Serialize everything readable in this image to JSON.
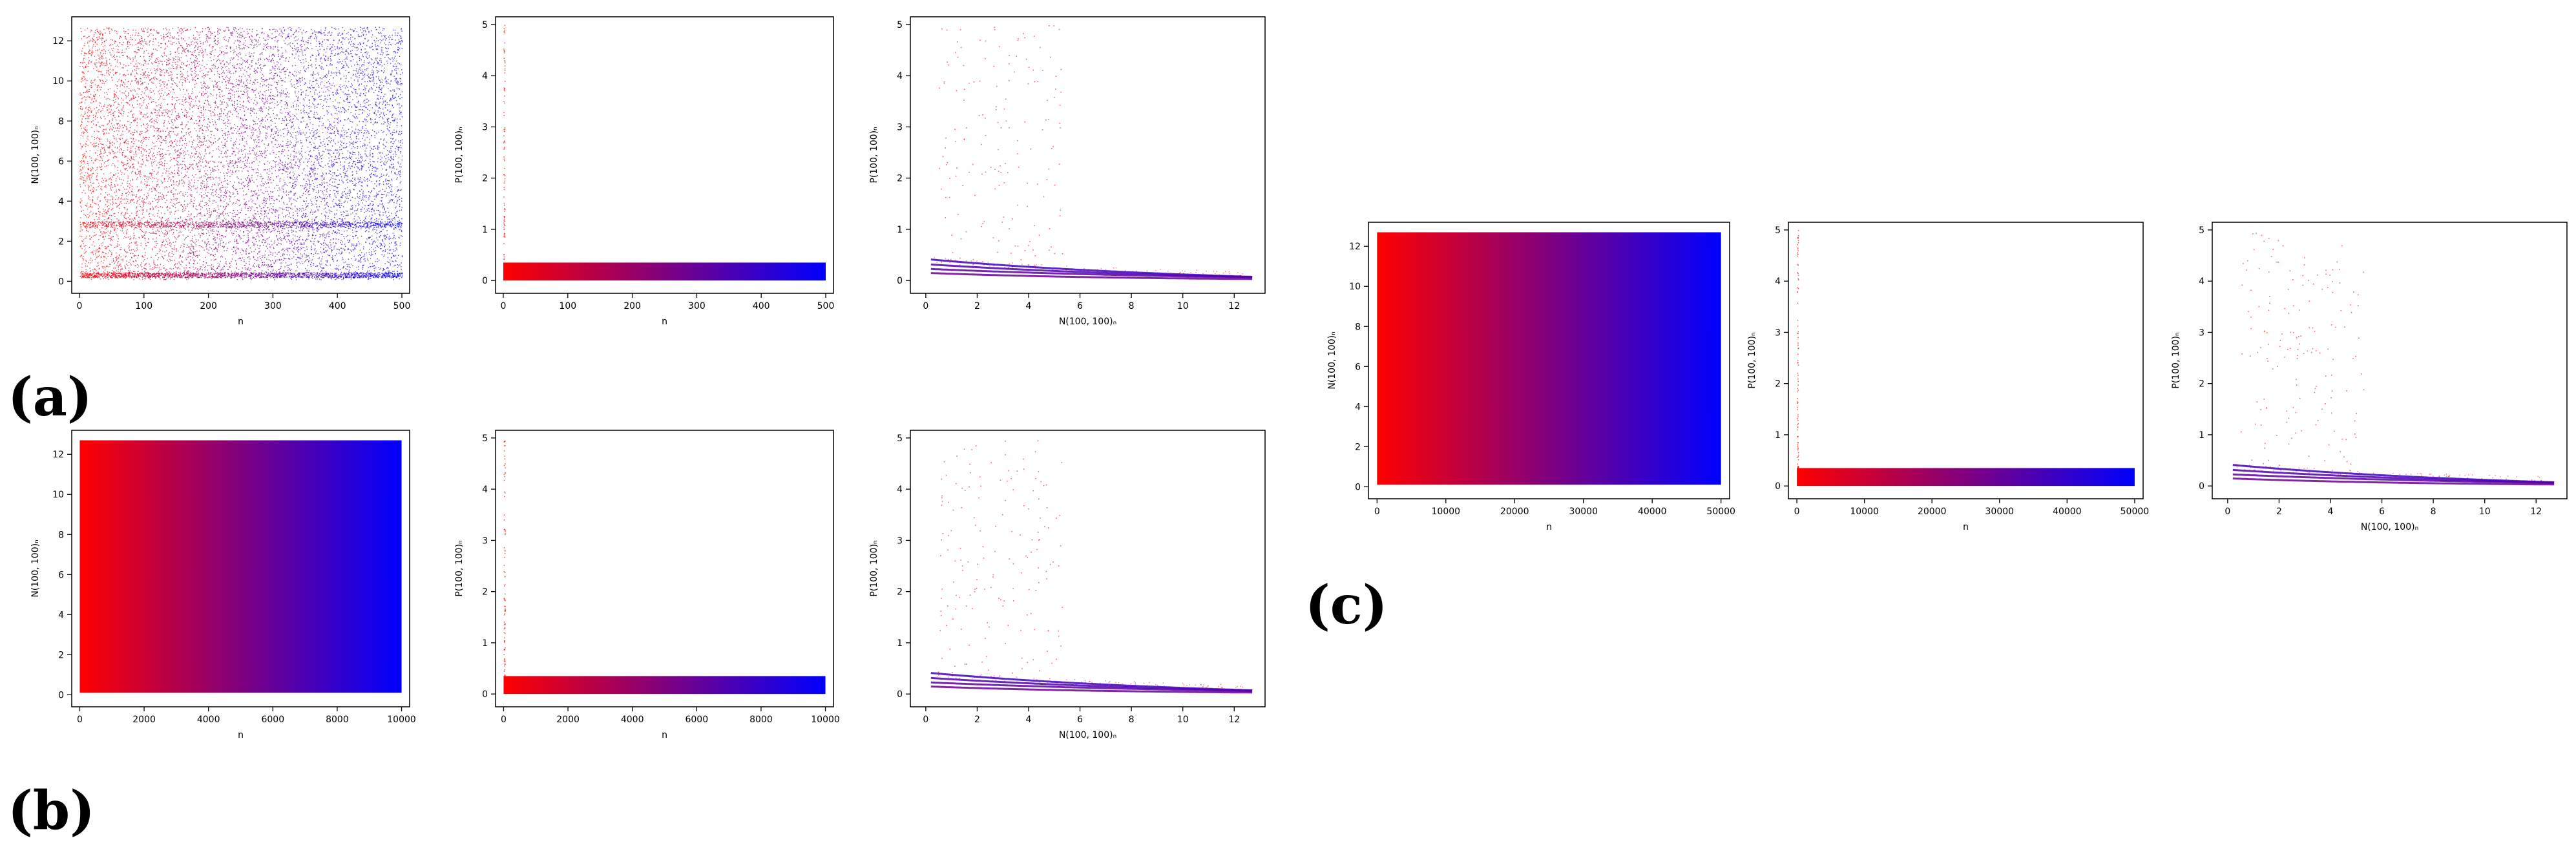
{
  "figure": {
    "panel_labels": [
      "(a)",
      "(b)",
      "(c)"
    ],
    "gradient_colors": {
      "start": "#ff0000",
      "end": "#0000ff"
    }
  },
  "chart_data": [
    {
      "id": "a1",
      "group": "(a)",
      "type": "scatter",
      "xlabel": "n",
      "ylabel": "N(100, 100)ₙ",
      "xlim": [
        -12,
        512
      ],
      "ylim": [
        -0.6,
        13.2
      ],
      "xticks": [
        0,
        100,
        200,
        300,
        400,
        500
      ],
      "xtick_labels": [
        "0",
        "100",
        "200",
        "300",
        "400",
        "500"
      ],
      "yticks": [
        0,
        2,
        4,
        6,
        8,
        10,
        12
      ],
      "ytick_labels": [
        "0",
        "2",
        "4",
        "6",
        "8",
        "10",
        "12"
      ],
      "n_points": 500,
      "value_range": [
        0.1,
        12.7
      ],
      "dense_bands": [
        0.2,
        2.7
      ],
      "color_by": "n",
      "grid": false
    },
    {
      "id": "a2",
      "group": "(a)",
      "type": "scatter",
      "xlabel": "n",
      "ylabel": "P(100, 100)ₙ",
      "xlim": [
        -12,
        512
      ],
      "ylim": [
        -0.25,
        5.15
      ],
      "xticks": [
        0,
        100,
        200,
        300,
        400,
        500
      ],
      "xtick_labels": [
        "0",
        "100",
        "200",
        "300",
        "400",
        "500"
      ],
      "yticks": [
        0,
        1,
        2,
        3,
        4,
        5
      ],
      "ytick_labels": [
        "0",
        "1",
        "2",
        "3",
        "4",
        "5"
      ],
      "n_points": 500,
      "band_range": [
        0,
        0.35
      ],
      "spike_max": 5.0,
      "color_by": "n",
      "grid": false
    },
    {
      "id": "a3",
      "group": "(a)",
      "type": "scatter",
      "xlabel": "N(100, 100)ₙ",
      "ylabel": "P(100, 100)ₙ",
      "xlim": [
        -0.6,
        13.2
      ],
      "ylim": [
        -0.25,
        5.15
      ],
      "xticks": [
        0,
        2,
        4,
        6,
        8,
        10,
        12
      ],
      "xtick_labels": [
        "0",
        "2",
        "4",
        "6",
        "8",
        "10",
        "12"
      ],
      "yticks": [
        0,
        1,
        2,
        3,
        4,
        5
      ],
      "ytick_labels": [
        "0",
        "1",
        "2",
        "3",
        "4",
        "5"
      ],
      "n_points": 500,
      "color_by": "n",
      "grid": false
    },
    {
      "id": "b1",
      "group": "(b)",
      "type": "scatter",
      "xlabel": "n",
      "ylabel": "N(100, 100)ₙ",
      "xlim": [
        -250,
        10250
      ],
      "ylim": [
        -0.6,
        13.2
      ],
      "xticks": [
        0,
        2000,
        4000,
        6000,
        8000,
        10000
      ],
      "xtick_labels": [
        "0",
        "2000",
        "4000",
        "6000",
        "8000",
        "10000"
      ],
      "yticks": [
        0,
        2,
        4,
        6,
        8,
        10,
        12
      ],
      "ytick_labels": [
        "0",
        "2",
        "4",
        "6",
        "8",
        "10",
        "12"
      ],
      "n_points": 10000,
      "value_range": [
        0.1,
        12.7
      ],
      "color_by": "n",
      "grid": false
    },
    {
      "id": "b2",
      "group": "(b)",
      "type": "scatter",
      "xlabel": "n",
      "ylabel": "P(100, 100)ₙ",
      "xlim": [
        -250,
        10250
      ],
      "ylim": [
        -0.25,
        5.15
      ],
      "xticks": [
        0,
        2000,
        4000,
        6000,
        8000,
        10000
      ],
      "xtick_labels": [
        "0",
        "2000",
        "4000",
        "6000",
        "8000",
        "10000"
      ],
      "yticks": [
        0,
        1,
        2,
        3,
        4,
        5
      ],
      "ytick_labels": [
        "0",
        "1",
        "2",
        "3",
        "4",
        "5"
      ],
      "n_points": 10000,
      "band_range": [
        0,
        0.35
      ],
      "spike_max": 5.0,
      "color_by": "n",
      "grid": false
    },
    {
      "id": "b3",
      "group": "(b)",
      "type": "scatter",
      "xlabel": "N(100, 100)ₙ",
      "ylabel": "P(100, 100)ₙ",
      "xlim": [
        -0.6,
        13.2
      ],
      "ylim": [
        -0.25,
        5.15
      ],
      "xticks": [
        0,
        2,
        4,
        6,
        8,
        10,
        12
      ],
      "xtick_labels": [
        "0",
        "2",
        "4",
        "6",
        "8",
        "10",
        "12"
      ],
      "yticks": [
        0,
        1,
        2,
        3,
        4,
        5
      ],
      "ytick_labels": [
        "0",
        "1",
        "2",
        "3",
        "4",
        "5"
      ],
      "n_points": 10000,
      "color_by": "n",
      "grid": false
    },
    {
      "id": "c1",
      "group": "(c)",
      "type": "scatter",
      "xlabel": "n",
      "ylabel": "N(100, 100)ₙ",
      "xlim": [
        -1250,
        51250
      ],
      "ylim": [
        -0.6,
        13.2
      ],
      "xticks": [
        0,
        10000,
        20000,
        30000,
        40000,
        50000
      ],
      "xtick_labels": [
        "0",
        "10000",
        "20000",
        "30000",
        "40000",
        "50000"
      ],
      "yticks": [
        0,
        2,
        4,
        6,
        8,
        10,
        12
      ],
      "ytick_labels": [
        "0",
        "2",
        "4",
        "6",
        "8",
        "10",
        "12"
      ],
      "n_points": 50000,
      "value_range": [
        0.1,
        12.7
      ],
      "color_by": "n",
      "grid": false
    },
    {
      "id": "c2",
      "group": "(c)",
      "type": "scatter",
      "xlabel": "n",
      "ylabel": "P(100, 100)ₙ",
      "xlim": [
        -1250,
        51250
      ],
      "ylim": [
        -0.25,
        5.15
      ],
      "xticks": [
        0,
        10000,
        20000,
        30000,
        40000,
        50000
      ],
      "xtick_labels": [
        "0",
        "10000",
        "20000",
        "30000",
        "40000",
        "50000"
      ],
      "yticks": [
        0,
        1,
        2,
        3,
        4,
        5
      ],
      "ytick_labels": [
        "0",
        "1",
        "2",
        "3",
        "4",
        "5"
      ],
      "n_points": 50000,
      "band_range": [
        0,
        0.35
      ],
      "spike_max": 5.0,
      "color_by": "n",
      "grid": false
    },
    {
      "id": "c3",
      "group": "(c)",
      "type": "scatter",
      "xlabel": "N(100, 100)ₙ",
      "ylabel": "P(100, 100)ₙ",
      "xlim": [
        -0.6,
        13.2
      ],
      "ylim": [
        -0.25,
        5.15
      ],
      "xticks": [
        0,
        2,
        4,
        6,
        8,
        10,
        12
      ],
      "xtick_labels": [
        "0",
        "2",
        "4",
        "6",
        "8",
        "10",
        "12"
      ],
      "yticks": [
        0,
        1,
        2,
        3,
        4,
        5
      ],
      "ytick_labels": [
        "0",
        "1",
        "2",
        "3",
        "4",
        "5"
      ],
      "n_points": 50000,
      "color_by": "n",
      "grid": false
    }
  ]
}
